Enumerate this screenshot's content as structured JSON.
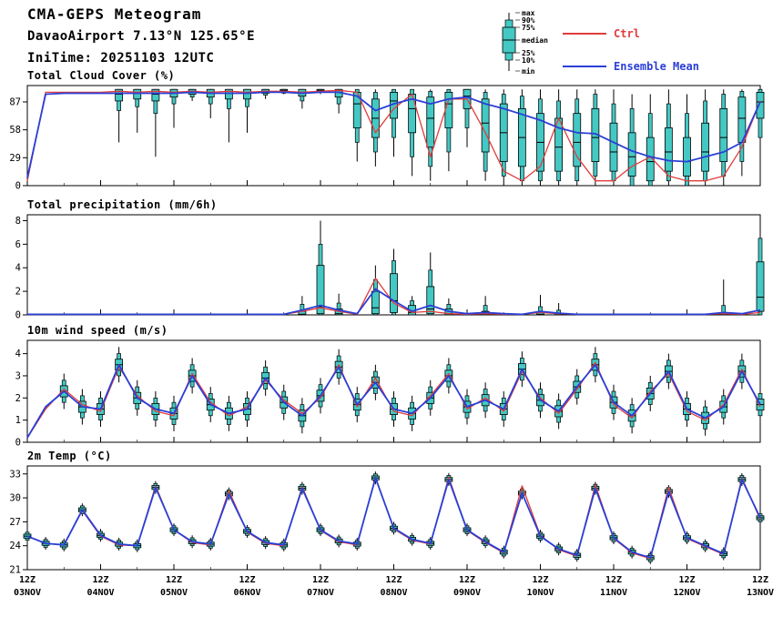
{
  "header": {
    "title": "CMA-GEPS Meteogram",
    "station": "DavaoAirport 7.13°N 125.65°E",
    "initime": "IniTime: 20251103 12UTC"
  },
  "legend": {
    "box_labels": [
      "max",
      "90%",
      "75%",
      "median",
      "25%",
      "10%",
      "min"
    ],
    "ctrl_label": "Ctrl",
    "ensemble_label": "Ensemble Mean",
    "ctrl_color": "#e03c3c",
    "ensemble_color": "#2b3fd6",
    "box_color": "#44c8c4"
  },
  "x_axis": {
    "step_hours": 6,
    "n_steps": 41,
    "ticks": [
      {
        "i": 0,
        "hour": "12Z",
        "date": "03NOV"
      },
      {
        "i": 4,
        "hour": "12Z",
        "date": "04NOV"
      },
      {
        "i": 8,
        "hour": "12Z",
        "date": "05NOV"
      },
      {
        "i": 12,
        "hour": "12Z",
        "date": "06NOV"
      },
      {
        "i": 16,
        "hour": "12Z",
        "date": "07NOV"
      },
      {
        "i": 20,
        "hour": "12Z",
        "date": "08NOV"
      },
      {
        "i": 24,
        "hour": "12Z",
        "date": "09NOV"
      },
      {
        "i": 28,
        "hour": "12Z",
        "date": "10NOV"
      },
      {
        "i": 32,
        "hour": "12Z",
        "date": "11NOV"
      },
      {
        "i": 36,
        "hour": "12Z",
        "date": "12NOV"
      },
      {
        "i": 40,
        "hour": "12Z",
        "date": "13NOV"
      }
    ]
  },
  "chart_data": [
    {
      "type": "box-line",
      "title": "Total Cloud Cover (%)",
      "ylim": [
        0,
        104
      ],
      "yticks": [
        0,
        29,
        58,
        87
      ],
      "series": [
        {
          "name": "Ctrl",
          "color": "#e03c3c",
          "width": 1.3,
          "values": [
            5,
            97,
            97,
            97,
            97,
            98,
            97,
            98,
            97,
            98,
            97,
            98,
            97,
            98,
            98,
            97,
            98,
            99,
            97,
            55,
            80,
            95,
            30,
            90,
            90,
            55,
            15,
            5,
            20,
            70,
            30,
            5,
            5,
            20,
            30,
            10,
            5,
            5,
            10,
            40,
            88
          ]
        },
        {
          "name": "Ensemble Mean",
          "color": "#2b3fd6",
          "width": 1.8,
          "values": [
            8,
            95,
            96,
            96,
            96,
            96,
            96,
            96,
            96,
            97,
            96,
            96,
            96,
            97,
            97,
            96,
            97,
            97,
            93,
            78,
            85,
            90,
            85,
            90,
            92,
            85,
            80,
            74,
            68,
            60,
            55,
            54,
            45,
            36,
            30,
            26,
            25,
            30,
            35,
            45,
            87
          ]
        }
      ],
      "boxes": [
        null,
        null,
        null,
        null,
        null,
        [
          45,
          78,
          88,
          95,
          100,
          100,
          100
        ],
        [
          55,
          82,
          90,
          96,
          100,
          100,
          100
        ],
        [
          30,
          75,
          88,
          95,
          100,
          100,
          100
        ],
        [
          60,
          85,
          92,
          97,
          100,
          100,
          100
        ],
        [
          88,
          92,
          95,
          98,
          100,
          100,
          100
        ],
        [
          70,
          85,
          92,
          97,
          100,
          100,
          100
        ],
        [
          45,
          80,
          90,
          96,
          100,
          100,
          100
        ],
        [
          55,
          82,
          90,
          96,
          100,
          100,
          100
        ],
        [
          90,
          94,
          96,
          98,
          100,
          100,
          100
        ],
        [
          95,
          96,
          97,
          99,
          100,
          100,
          100
        ],
        [
          80,
          88,
          93,
          97,
          100,
          100,
          100
        ],
        [
          95,
          97,
          98,
          99,
          100,
          100,
          100
        ],
        [
          75,
          85,
          92,
          97,
          100,
          100,
          100
        ],
        [
          25,
          45,
          60,
          85,
          97,
          100,
          100
        ],
        [
          20,
          35,
          50,
          70,
          90,
          97,
          100
        ],
        [
          30,
          50,
          70,
          88,
          97,
          100,
          100
        ],
        [
          10,
          30,
          55,
          80,
          95,
          100,
          100
        ],
        [
          5,
          20,
          40,
          70,
          92,
          98,
          100
        ],
        [
          15,
          35,
          60,
          85,
          97,
          100,
          100
        ],
        [
          40,
          60,
          80,
          93,
          100,
          100,
          100
        ],
        [
          5,
          15,
          35,
          65,
          90,
          97,
          100
        ],
        [
          0,
          10,
          25,
          55,
          85,
          95,
          100
        ],
        [
          0,
          5,
          20,
          50,
          80,
          93,
          100
        ],
        [
          0,
          5,
          15,
          45,
          75,
          90,
          100
        ],
        [
          0,
          5,
          15,
          40,
          70,
          88,
          100
        ],
        [
          0,
          5,
          20,
          45,
          75,
          90,
          100
        ],
        [
          0,
          10,
          25,
          50,
          80,
          95,
          100
        ],
        [
          0,
          5,
          15,
          35,
          65,
          85,
          100
        ],
        [
          0,
          0,
          10,
          30,
          55,
          80,
          95
        ],
        [
          0,
          0,
          5,
          25,
          50,
          75,
          95
        ],
        [
          0,
          5,
          15,
          35,
          60,
          85,
          100
        ],
        [
          0,
          0,
          10,
          25,
          50,
          75,
          95
        ],
        [
          0,
          5,
          15,
          35,
          65,
          88,
          100
        ],
        [
          0,
          10,
          25,
          50,
          80,
          95,
          100
        ],
        [
          10,
          25,
          45,
          70,
          92,
          98,
          100
        ],
        [
          30,
          50,
          70,
          87,
          97,
          100,
          100
        ]
      ]
    },
    {
      "type": "box-line",
      "title": "Total precipitation (mm/6h)",
      "ylim": [
        0,
        8.5
      ],
      "yticks": [
        0,
        2,
        4,
        6,
        8
      ],
      "series": [
        {
          "name": "Ctrl",
          "color": "#e03c3c",
          "width": 1.3,
          "values": [
            0.05,
            0.05,
            0.05,
            0.05,
            0.05,
            0.05,
            0.05,
            0.05,
            0.05,
            0.05,
            0.05,
            0.05,
            0.05,
            0.05,
            0.05,
            0.3,
            0.6,
            0.3,
            0.05,
            3.1,
            1.0,
            0.2,
            0.3,
            0.1,
            0.05,
            0.1,
            0.05,
            0.05,
            0.2,
            0.1,
            0.05,
            0.05,
            0.05,
            0.05,
            0.05,
            0.05,
            0.05,
            0.05,
            0.1,
            0.05,
            0.2
          ]
        },
        {
          "name": "Ensemble Mean",
          "color": "#2b3fd6",
          "width": 1.8,
          "values": [
            0.05,
            0.05,
            0.05,
            0.05,
            0.05,
            0.05,
            0.05,
            0.05,
            0.05,
            0.05,
            0.05,
            0.05,
            0.05,
            0.05,
            0.05,
            0.4,
            0.8,
            0.4,
            0.1,
            2.2,
            1.2,
            0.3,
            0.8,
            0.3,
            0.1,
            0.2,
            0.1,
            0.05,
            0.3,
            0.15,
            0.05,
            0.05,
            0.05,
            0.05,
            0.05,
            0.05,
            0.05,
            0.05,
            0.2,
            0.1,
            0.4
          ]
        }
      ],
      "boxes": [
        null,
        null,
        null,
        null,
        null,
        null,
        null,
        null,
        null,
        null,
        null,
        null,
        null,
        null,
        null,
        [
          0,
          0,
          0,
          0.05,
          0.3,
          0.9,
          1.6
        ],
        [
          0,
          0,
          0.1,
          0.7,
          4.2,
          6.0,
          8.0
        ],
        [
          0,
          0,
          0,
          0.1,
          0.5,
          1.0,
          1.8
        ],
        null,
        [
          0,
          0,
          0.1,
          0.6,
          2.0,
          3.0,
          4.2
        ],
        [
          0,
          0,
          0.2,
          1.2,
          3.5,
          4.6,
          5.6
        ],
        [
          0,
          0,
          0,
          0.2,
          0.8,
          1.2,
          1.6
        ],
        [
          0,
          0,
          0.1,
          0.5,
          2.4,
          3.8,
          5.3
        ],
        [
          0,
          0,
          0,
          0.1,
          0.5,
          0.9,
          1.4
        ],
        null,
        [
          0,
          0,
          0,
          0.05,
          0.3,
          0.8,
          1.6
        ],
        null,
        null,
        [
          0,
          0,
          0,
          0.05,
          0.25,
          0.7,
          1.7
        ],
        [
          0,
          0,
          0,
          0,
          0.1,
          0.4,
          1.0
        ],
        null,
        null,
        null,
        null,
        null,
        null,
        null,
        null,
        [
          0,
          0,
          0,
          0.05,
          0.2,
          0.8,
          3.0
        ],
        null,
        [
          0,
          0,
          0.3,
          1.5,
          4.5,
          6.5,
          8.0
        ]
      ]
    },
    {
      "type": "box-line",
      "title": "10m wind speed (m/s)",
      "ylim": [
        0,
        4.6
      ],
      "yticks": [
        0,
        1,
        2,
        3,
        4
      ],
      "series": [
        {
          "name": "Ctrl",
          "color": "#e03c3c",
          "width": 1.3,
          "values": [
            0.2,
            1.5,
            2.4,
            1.7,
            1.4,
            3.4,
            2.1,
            1.4,
            1.2,
            3.1,
            1.8,
            1.2,
            1.6,
            2.8,
            1.9,
            1.3,
            2.0,
            3.5,
            1.6,
            2.9,
            1.4,
            1.2,
            2.1,
            3.1,
            1.5,
            2.0,
            1.4,
            3.2,
            2.0,
            1.3,
            2.4,
            3.6,
            1.7,
            1.1,
            2.3,
            3.1,
            1.4,
            1.0,
            1.7,
            3.3,
            1.6
          ]
        },
        {
          "name": "Ensemble Mean",
          "color": "#2b3fd6",
          "width": 1.8,
          "values": [
            0.2,
            1.6,
            2.3,
            1.6,
            1.5,
            3.5,
            2.0,
            1.5,
            1.3,
            3.0,
            1.7,
            1.3,
            1.5,
            2.9,
            1.8,
            1.2,
            2.1,
            3.4,
            1.7,
            2.7,
            1.5,
            1.3,
            2.0,
            3.0,
            1.6,
            1.9,
            1.5,
            3.3,
            1.9,
            1.4,
            2.5,
            3.5,
            1.8,
            1.2,
            2.2,
            3.2,
            1.5,
            1.1,
            1.6,
            3.2,
            1.7
          ]
        }
      ],
      "box_centers": [
        null,
        null,
        2.3,
        1.6,
        1.5,
        3.5,
        2.0,
        1.5,
        1.3,
        3.0,
        1.7,
        1.3,
        1.5,
        2.9,
        1.8,
        1.2,
        2.1,
        3.4,
        1.7,
        2.7,
        1.5,
        1.3,
        2.0,
        3.0,
        1.6,
        1.9,
        1.5,
        3.3,
        1.9,
        1.4,
        2.5,
        3.5,
        1.8,
        1.2,
        2.2,
        3.2,
        1.5,
        1.1,
        1.6,
        3.2,
        1.7
      ],
      "box_offsets": [
        -0.8,
        -0.5,
        -0.25,
        0,
        0.25,
        0.5,
        0.8
      ]
    },
    {
      "type": "box-line",
      "title": "2m Temp (°C)",
      "ylim": [
        21,
        34
      ],
      "yticks": [
        21,
        24,
        27,
        30,
        33
      ],
      "series": [
        {
          "name": "Ctrl",
          "color": "#e03c3c",
          "width": 1.3,
          "values": [
            25.2,
            24.3,
            24.1,
            28.4,
            25.2,
            24.1,
            24.0,
            31.5,
            26.0,
            24.4,
            24.1,
            30.9,
            25.7,
            24.3,
            24.0,
            31.4,
            25.9,
            24.5,
            24.1,
            32.6,
            26.1,
            24.7,
            24.2,
            32.6,
            25.9,
            24.4,
            23.1,
            31.5,
            25.3,
            23.5,
            22.7,
            31.6,
            24.9,
            23.1,
            22.4,
            31.3,
            24.9,
            23.9,
            22.9,
            32.5,
            27.3
          ]
        },
        {
          "name": "Ensemble Mean",
          "color": "#2b3fd6",
          "width": 1.8,
          "values": [
            25.2,
            24.3,
            24.1,
            28.5,
            25.3,
            24.2,
            24.0,
            31.3,
            26.0,
            24.5,
            24.2,
            30.5,
            25.8,
            24.4,
            24.1,
            31.2,
            26.0,
            24.6,
            24.2,
            32.5,
            26.2,
            24.8,
            24.3,
            32.3,
            26.0,
            24.5,
            23.2,
            30.6,
            25.2,
            23.6,
            22.8,
            31.2,
            25.0,
            23.2,
            22.5,
            30.8,
            25.0,
            24.0,
            23.0,
            32.3,
            27.5
          ]
        }
      ],
      "box_centers": [
        25.2,
        24.3,
        24.1,
        28.5,
        25.3,
        24.2,
        24.0,
        31.3,
        26.0,
        24.5,
        24.2,
        30.5,
        25.8,
        24.4,
        24.1,
        31.2,
        26.0,
        24.6,
        24.2,
        32.5,
        26.2,
        24.8,
        24.3,
        32.3,
        26.0,
        24.5,
        23.2,
        30.6,
        25.2,
        23.6,
        22.8,
        31.2,
        25.0,
        23.2,
        22.5,
        30.8,
        25.0,
        24.0,
        23.0,
        32.3,
        27.5
      ],
      "box_offsets": [
        -0.8,
        -0.5,
        -0.25,
        0,
        0.25,
        0.5,
        0.8
      ]
    }
  ]
}
